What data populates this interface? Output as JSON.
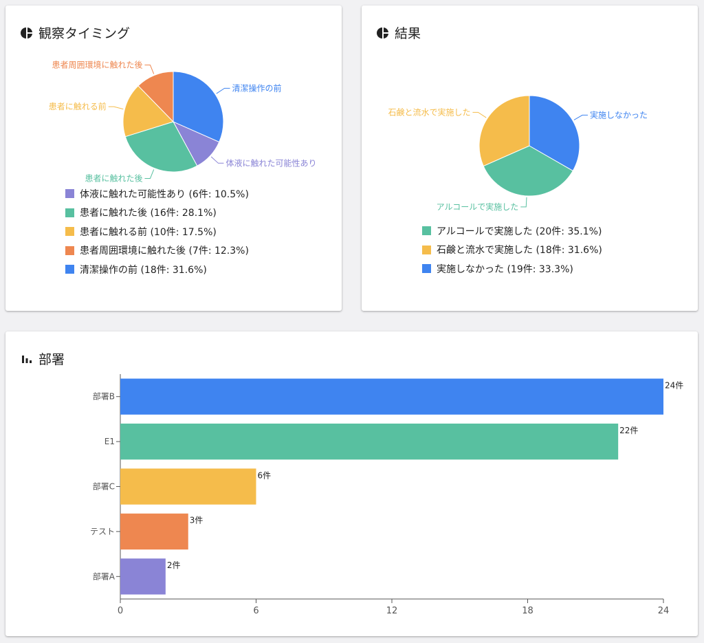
{
  "cards": {
    "timing": {
      "title": "観察タイミング",
      "icon": "pie-chart-icon"
    },
    "result": {
      "title": "結果",
      "icon": "pie-chart-icon"
    },
    "dept": {
      "title": "部署",
      "icon": "bar-chart-icon"
    }
  },
  "chart_data": [
    {
      "type": "pie",
      "title": "観察タイミング",
      "slices": [
        {
          "label": "体液に触れた可能性あり",
          "count": 6,
          "value": 10.5,
          "color": "#8A84D6",
          "legend": "体液に触れた可能性あり (6件: 10.5%)"
        },
        {
          "label": "患者に触れた後",
          "count": 16,
          "value": 28.1,
          "color": "#58C0A0",
          "legend": "患者に触れた後 (16件: 28.1%)"
        },
        {
          "label": "患者に触れる前",
          "count": 10,
          "value": 17.5,
          "color": "#F5BC4B",
          "legend": "患者に触れる前 (10件: 17.5%)"
        },
        {
          "label": "患者周囲環境に触れた後",
          "count": 7,
          "value": 12.3,
          "color": "#EE8750",
          "legend": "患者周囲環境に触れた後 (7件: 12.3%)"
        },
        {
          "label": "清潔操作の前",
          "count": 18,
          "value": 31.6,
          "color": "#3F84F0",
          "legend": "清潔操作の前 (18件: 31.6%)"
        }
      ]
    },
    {
      "type": "pie",
      "title": "結果",
      "slices": [
        {
          "label": "アルコールで実施した",
          "count": 20,
          "value": 35.1,
          "color": "#58C0A0",
          "legend": "アルコールで実施した (20件: 35.1%)"
        },
        {
          "label": "石鹸と流水で実施した",
          "count": 18,
          "value": 31.6,
          "color": "#F5BC4B",
          "legend": "石鹸と流水で実施した (18件: 31.6%)"
        },
        {
          "label": "実施しなかった",
          "count": 19,
          "value": 33.3,
          "color": "#3F84F0",
          "legend": "実施しなかった (19件: 33.3%)"
        }
      ]
    },
    {
      "type": "bar",
      "orientation": "horizontal",
      "title": "部署",
      "categories": [
        "部署B",
        "E1",
        "部署C",
        "テスト",
        "部署A"
      ],
      "values": [
        24,
        22,
        6,
        3,
        2
      ],
      "labels": [
        "24件",
        "22件",
        "6件",
        "3件",
        "2件"
      ],
      "colors": [
        "#3F84F0",
        "#58C0A0",
        "#F5BC4B",
        "#EE8750",
        "#8A84D6"
      ],
      "xlim": [
        0,
        24
      ],
      "ticks": [
        0,
        6,
        12,
        18,
        24
      ]
    }
  ]
}
